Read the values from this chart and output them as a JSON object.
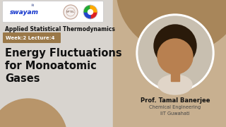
{
  "bg_color": "#d8d4cf",
  "right_bg_color": "#c8b090",
  "blob_color": "#a8865a",
  "blob2_color": "#b8956a",
  "blob_bottom_color": "#9a7848",
  "photo_border_color": "#ffffff",
  "photo_bg_color": "#c8bfb0",
  "week_bg": "#9a7848",
  "week_text_color": "#ffffff",
  "title_color": "#111111",
  "subtitle_color": "#111111",
  "prof_name_color": "#111111",
  "dept_color": "#444444",
  "logo_box_color": "#ffffff",
  "logo_box_border": "#cccccc",
  "subtitle": "Applied Statistical Thermodynamics",
  "week_lecture": "Week:2 Lecture:4",
  "title_line1": "Energy Fluctuations",
  "title_line2": "for Monoatomic",
  "title_line3": "Gases",
  "prof_name": "Prof. Tamal Banerjee",
  "dept": "Chemical Engineering",
  "institute": "IIT Guwahati",
  "title_fontsize": 10.5,
  "subtitle_fontsize": 5.5,
  "week_fontsize": 5.0,
  "prof_fontsize": 6.0,
  "dept_fontsize": 4.8
}
